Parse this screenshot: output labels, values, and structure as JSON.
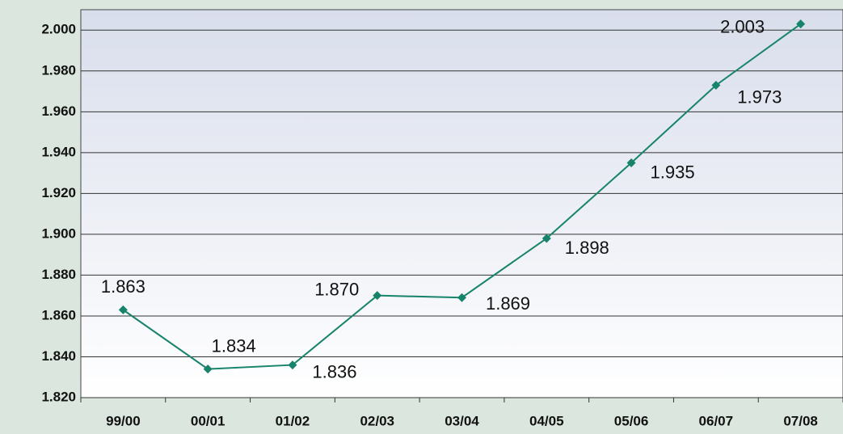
{
  "chart_data": {
    "type": "line",
    "categories": [
      "99/00",
      "00/01",
      "01/02",
      "02/03",
      "03/04",
      "04/05",
      "05/06",
      "06/07",
      "07/08"
    ],
    "series": [
      {
        "color": "#16836b",
        "values": [
          1863,
          1834,
          1836,
          1870,
          1869,
          1898,
          1935,
          1973,
          2003
        ],
        "value_labels": [
          "1.863",
          "1.834",
          "1.836",
          "1.870",
          "1.869",
          "1.898",
          "1.935",
          "1.973",
          "2.003"
        ]
      }
    ],
    "ylim": [
      1820,
      2010
    ],
    "yticks": [
      {
        "value": 1820,
        "label": "1.820"
      },
      {
        "value": 1840,
        "label": "1.840"
      },
      {
        "value": 1860,
        "label": "1.860"
      },
      {
        "value": 1880,
        "label": "1.880"
      },
      {
        "value": 1900,
        "label": "1.900"
      },
      {
        "value": 1920,
        "label": "1.920"
      },
      {
        "value": 1940,
        "label": "1.940"
      },
      {
        "value": 1960,
        "label": "1.960"
      },
      {
        "value": 1980,
        "label": "1.980"
      },
      {
        "value": 2000,
        "label": "2.000"
      }
    ],
    "grid": true
  }
}
